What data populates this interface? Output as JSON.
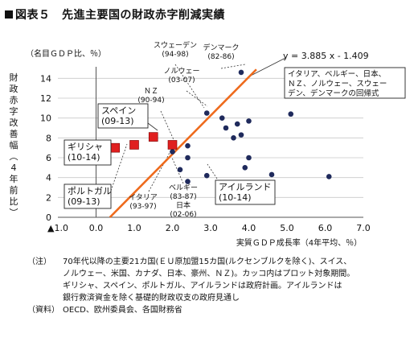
{
  "title": "図表５　先進主要国の財政赤字削減実績",
  "chart_data": {
    "type": "scatter",
    "ylabel_top": "（名目ＧＤＰ比、％）",
    "ylabel_side": "財政赤字改善幅（4年前比）",
    "xlabel": "実質ＧＤＰ成長率（4年平均、％）",
    "xlim": [
      -1.0,
      7.0
    ],
    "ylim": [
      0,
      15
    ],
    "xticks": [
      "▲1.0",
      "0.0",
      "1.0",
      "2.0",
      "3.0",
      "4.0",
      "5.0",
      "6.0",
      "7.0"
    ],
    "yticks": [
      "0",
      "2",
      "4",
      "6",
      "8",
      "10",
      "12",
      "14"
    ],
    "regression": {
      "label": "y = 3.885 x - 1.409",
      "slope": 3.885,
      "intercept": -1.409,
      "color": "#ee6a1c"
    },
    "regression_note": "イタリア、ベルギー、日本、ＮＺ、ノルウェー、スウェーデン、デンマークの回帰式",
    "series": [
      {
        "name": "プロット対象期間",
        "marker": "circle",
        "color": "#1f2a5c",
        "points": [
          {
            "x": 3.3,
            "y": 10.0
          },
          {
            "x": 3.8,
            "y": 14.6
          },
          {
            "x": 3.4,
            "y": 9.0
          },
          {
            "x": 3.6,
            "y": 8.0
          },
          {
            "x": 3.8,
            "y": 8.3
          },
          {
            "x": 3.7,
            "y": 9.4
          },
          {
            "x": 4.0,
            "y": 9.7
          },
          {
            "x": 3.9,
            "y": 5.0
          },
          {
            "x": 4.0,
            "y": 6.0
          },
          {
            "x": 4.6,
            "y": 4.3
          },
          {
            "x": 5.1,
            "y": 10.4
          },
          {
            "x": 6.1,
            "y": 4.1
          },
          {
            "x": 2.9,
            "y": 10.5
          },
          {
            "x": 2.9,
            "y": 4.2
          },
          {
            "x": 2.4,
            "y": 3.6
          },
          {
            "x": 2.4,
            "y": 6.0
          },
          {
            "x": 2.2,
            "y": 4.8
          },
          {
            "x": 2.4,
            "y": 7.2
          },
          {
            "x": 2.0,
            "y": 6.6
          }
        ]
      },
      {
        "name": "政府計画",
        "marker": "square",
        "color": "#e02020",
        "points": [
          {
            "x": 0.5,
            "y": 7.0
          },
          {
            "x": 1.0,
            "y": 7.3
          },
          {
            "x": 1.5,
            "y": 8.1
          },
          {
            "x": 2.0,
            "y": 7.3
          }
        ]
      }
    ],
    "annotations": [
      {
        "text": [
          "スウェーデン",
          "(94-98)"
        ]
      },
      {
        "text": [
          "デンマーク",
          "(82-86)"
        ]
      },
      {
        "text": [
          "ノルウェー",
          "(03-07)"
        ]
      },
      {
        "text": [
          "ＮＺ",
          "(90-94)"
        ]
      },
      {
        "text": [
          "スペイン",
          "(09-13)"
        ],
        "boxed": true
      },
      {
        "text": [
          "ギリシャ",
          "(10-14)"
        ],
        "boxed": true
      },
      {
        "text": [
          "ポルトガル",
          "(09-13)"
        ],
        "boxed": true
      },
      {
        "text": [
          "イタリア",
          "(93-97)"
        ]
      },
      {
        "text": [
          "ベルギー",
          "(83-87)",
          "日本",
          "(02-06)"
        ]
      },
      {
        "text": [
          "アイルランド",
          "(10-14)"
        ],
        "boxed": true
      }
    ]
  },
  "notes": [
    {
      "lead": "（注）",
      "lines": [
        "70年代以降の主要21カ国(ＥＵ原加盟15カ国(ルクセンブルクを除く)、スイス、",
        "ノルウェー、米国、カナダ、日本、豪州、ＮＺ)。カッコ内はプロット対象期間。",
        "ギリシャ、スペイン、ポルトガル、アイルランドは政府計画。アイルランドは",
        "銀行救済資金を除く基礎的財政収支の政府見通し"
      ]
    },
    {
      "lead": "（資料）",
      "lines": [
        "OECD、欧州委員会、各国財務省"
      ]
    }
  ]
}
